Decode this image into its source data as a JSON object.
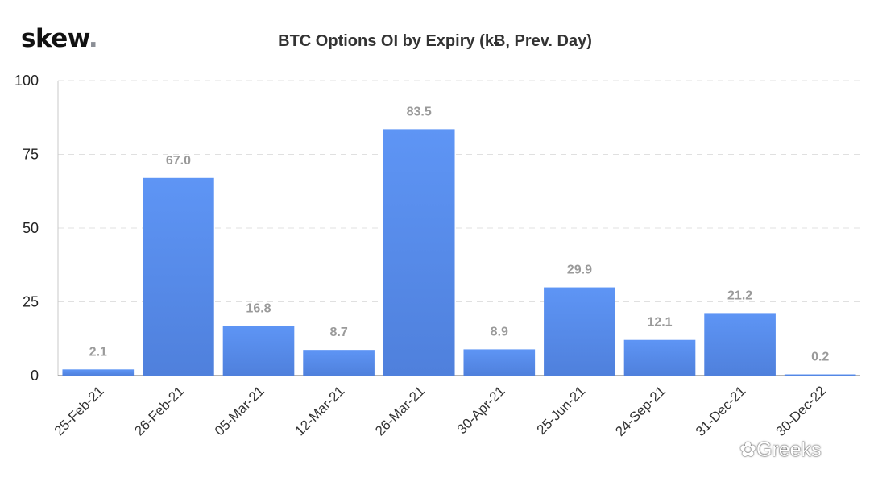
{
  "header": {
    "logo_text": "skew",
    "logo_dot": ".",
    "title": "BTC Options OI by Expiry (kɃ, Prev. Day)"
  },
  "watermark": "Greeks",
  "watermark_text": "Greeks",
  "colors": {
    "bar_top": "#5e95f5",
    "bar_bottom": "#4f80dc",
    "grid": "#e0e0e0",
    "data_label": "#9a9a9a"
  },
  "chart_data": {
    "type": "bar",
    "title": "BTC Options OI by Expiry (kɃ, Prev. Day)",
    "categories": [
      "25-Feb-21",
      "26-Feb-21",
      "05-Mar-21",
      "12-Mar-21",
      "26-Mar-21",
      "30-Apr-21",
      "25-Jun-21",
      "24-Sep-21",
      "31-Dec-21",
      "30-Dec-22"
    ],
    "values": [
      2.1,
      67.0,
      16.8,
      8.7,
      83.5,
      8.9,
      29.9,
      12.1,
      21.2,
      0.2
    ],
    "data_labels": [
      "2.1",
      "67.0",
      "16.8",
      "8.7",
      "83.5",
      "8.9",
      "29.9",
      "12.1",
      "21.2",
      "0.2"
    ],
    "ylim": [
      0,
      100
    ],
    "yticks": [
      0,
      25,
      50,
      75,
      100
    ],
    "grid": true,
    "legend": "none"
  }
}
